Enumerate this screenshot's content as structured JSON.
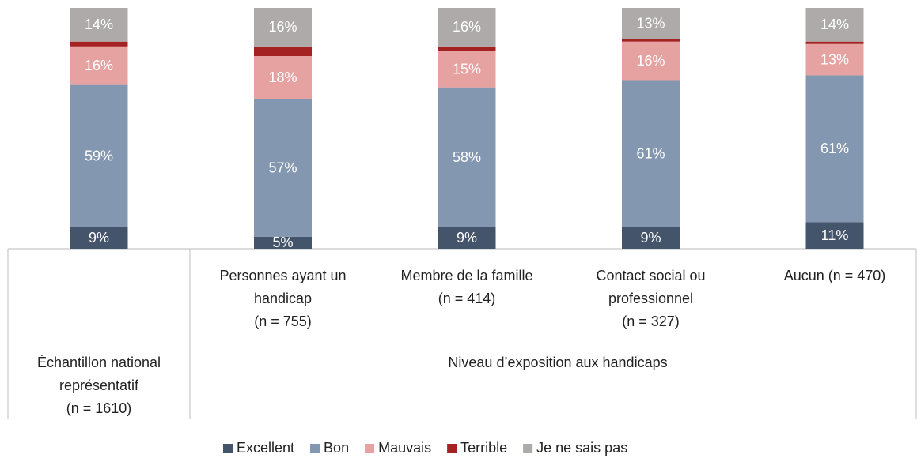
{
  "chart_data": {
    "type": "stacked_bar",
    "categories": [
      [
        "Échantillon national",
        "représentatif",
        "(n = 1610)"
      ],
      [
        "Personnes ayant un",
        "handicap",
        "(n = 755)"
      ],
      [
        "Membre de la famille",
        "(n = 414)"
      ],
      [
        "Contact social ou",
        "professionnel",
        "(n = 327)"
      ],
      [
        "Aucun (n = 470)"
      ]
    ],
    "group_label": "Niveau d’exposition aux handicaps",
    "ylim": [
      0,
      100
    ],
    "legend": "bottom",
    "series": [
      {
        "name": "Excellent",
        "color": "#44546a",
        "values": [
          9,
          5,
          9,
          9,
          11
        ],
        "value_labels": [
          "9%",
          "5%",
          "9%",
          "9%",
          "11%"
        ]
      },
      {
        "name": "Bon",
        "color": "#8497b0",
        "values": [
          59,
          57,
          58,
          61,
          61
        ],
        "value_labels": [
          "59%",
          "57%",
          "58%",
          "61%",
          "61%"
        ]
      },
      {
        "name": "Mauvais",
        "color": "#e6a1a1",
        "values": [
          16,
          18,
          15,
          16,
          13
        ],
        "value_labels": [
          "16%",
          "18%",
          "15%",
          "16%",
          "13%"
        ]
      },
      {
        "name": "Terrible",
        "color": "#a52222",
        "values": [
          2,
          4,
          2,
          1,
          1
        ]
      },
      {
        "name": "Je ne sais pas",
        "color": "#aeaaaa",
        "values": [
          14,
          16,
          16,
          13,
          14
        ],
        "value_labels": [
          "14%",
          "16%",
          "16%",
          "13%",
          "14%"
        ]
      }
    ]
  }
}
